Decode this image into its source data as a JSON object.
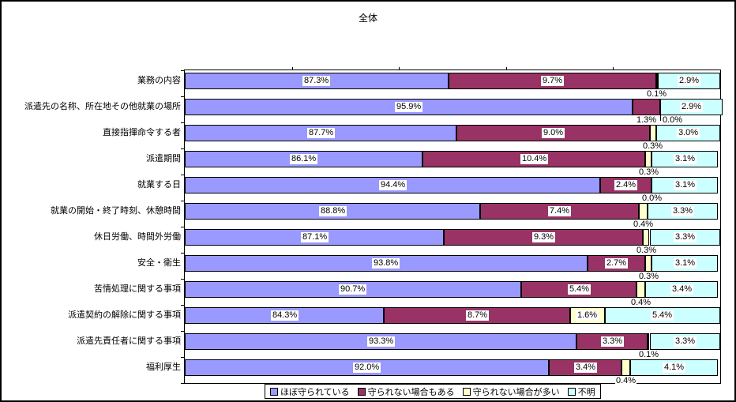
{
  "window": {
    "title": "全体"
  },
  "chart_data": {
    "type": "bar",
    "subtype": "stacked-horizontal-100pct",
    "orientation": "horizontal",
    "title": "全体",
    "xlabel": "",
    "ylabel": "",
    "xlim": [
      75,
      100
    ],
    "x_ticks": [
      80,
      85,
      90,
      95
    ],
    "axis_tick_labels_visible": false,
    "grid": false,
    "legend_position": "bottom",
    "value_label_suffix": "%",
    "categories": [
      "業務の内容",
      "派遣先の名称、所在地その他就業の場所",
      "直接指揮命令する者",
      "派遣期間",
      "就業する日",
      "就業の開始・終了時刻、休憩時間",
      "休日労働、時間外労働",
      "安全・衛生",
      "苦情処理に関する事項",
      "派遣契約の解除に関する事項",
      "派遣先責任者に関する事項",
      "福利厚生"
    ],
    "series": [
      {
        "name": "ほぼ守られている",
        "color": "#9999FF",
        "values": [
          87.3,
          95.9,
          87.7,
          86.1,
          94.4,
          88.8,
          87.1,
          93.8,
          90.7,
          84.3,
          93.3,
          92.0
        ]
      },
      {
        "name": "守られない場合もある",
        "color": "#993366",
        "values": [
          9.7,
          1.3,
          9.0,
          10.4,
          2.4,
          7.4,
          9.3,
          2.7,
          5.4,
          8.7,
          3.3,
          3.4
        ]
      },
      {
        "name": "守られない場合が多い",
        "color": "#FFFFCC",
        "values": [
          0.1,
          0.0,
          0.3,
          0.3,
          0.0,
          0.4,
          0.3,
          0.3,
          0.4,
          1.6,
          0.1,
          0.4
        ]
      },
      {
        "name": "不明",
        "color": "#CCFFFF",
        "values": [
          2.9,
          2.9,
          3.0,
          3.1,
          3.1,
          3.3,
          3.3,
          3.1,
          3.4,
          5.4,
          3.3,
          4.1
        ]
      }
    ]
  }
}
